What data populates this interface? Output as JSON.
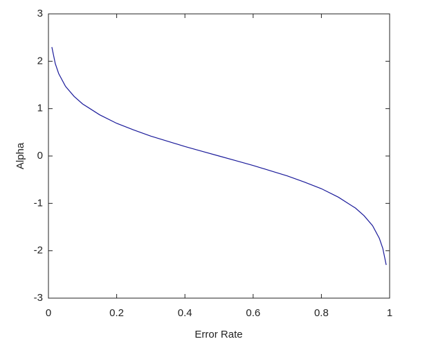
{
  "chart_data": {
    "type": "line",
    "x_label": "Error Rate",
    "y_label": "Alpha",
    "x": [
      0.01,
      0.02,
      0.03,
      0.05,
      0.075,
      0.1,
      0.15,
      0.2,
      0.25,
      0.3,
      0.35,
      0.4,
      0.45,
      0.5,
      0.55,
      0.6,
      0.65,
      0.7,
      0.75,
      0.8,
      0.85,
      0.9,
      0.925,
      0.95,
      0.97,
      0.98,
      0.99
    ],
    "series": [
      {
        "color": "#1a1a9a",
        "values": [
          2.3,
          1.95,
          1.74,
          1.47,
          1.26,
          1.1,
          0.87,
          0.69,
          0.55,
          0.42,
          0.31,
          0.2,
          0.1,
          0,
          -0.1,
          -0.2,
          -0.31,
          -0.42,
          -0.55,
          -0.69,
          -0.87,
          -1.1,
          -1.26,
          -1.47,
          -1.74,
          -1.95,
          -2.3
        ]
      }
    ],
    "xlim": [
      0,
      1
    ],
    "ylim": [
      -3,
      3
    ],
    "xticks": [
      0,
      0.2,
      0.4,
      0.6,
      0.8,
      1
    ],
    "yticks": [
      -3,
      -2,
      -1,
      0,
      1,
      2,
      3
    ],
    "grid": false
  }
}
